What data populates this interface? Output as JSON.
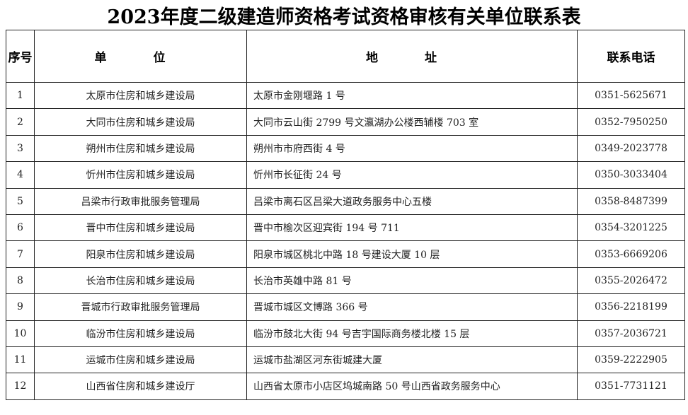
{
  "title": "2023年度二级建造师资格考试资格审核有关单位联系表",
  "headers": {
    "seq": "序号",
    "unit": "单 位",
    "address": "地 址",
    "phone": "联系电话"
  },
  "rows": [
    {
      "seq": "1",
      "unit": "太原市住房和城乡建设局",
      "address": "太原市金刚堰路 1 号",
      "phone": "0351-5625671"
    },
    {
      "seq": "2",
      "unit": "大同市住房和城乡建设局",
      "address": "大同市云山街 2799 号文瀛湖办公楼西辅楼 703 室",
      "phone": "0352-7950250"
    },
    {
      "seq": "3",
      "unit": "朔州市住房和城乡建设局",
      "address": "朔州市市府西街 4 号",
      "phone": "0349-2023778"
    },
    {
      "seq": "4",
      "unit": "忻州市住房和城乡建设局",
      "address": "忻州市长征街 24 号",
      "phone": "0350-3033404"
    },
    {
      "seq": "5",
      "unit": "吕梁市行政审批服务管理局",
      "address": "吕梁市离石区吕梁大道政务服务中心五楼",
      "phone": "0358-8487399"
    },
    {
      "seq": "6",
      "unit": "晋中市住房和城乡建设局",
      "address": "晋中市榆次区迎宾街 194 号 711",
      "phone": "0354-3201225"
    },
    {
      "seq": "7",
      "unit": "阳泉市住房和城乡建设局",
      "address": "阳泉市城区桃北中路 18 号建设大厦 10 层",
      "phone": "0353-6669206"
    },
    {
      "seq": "8",
      "unit": "长治市住房和城乡建设局",
      "address": "长治市英雄中路 81 号",
      "phone": "0355-2026472"
    },
    {
      "seq": "9",
      "unit": "晋城市行政审批服务管理局",
      "address": "晋城市城区文博路 366 号",
      "phone": "0356-2218199"
    },
    {
      "seq": "10",
      "unit": "临汾市住房和城乡建设局",
      "address": "临汾市鼓北大街 94 号吉宇国际商务楼北楼 15 层",
      "phone": "0357-2036721"
    },
    {
      "seq": "11",
      "unit": "运城市住房和城乡建设局",
      "address": "运城市盐湖区河东街城建大厦",
      "phone": "0359-2222905"
    },
    {
      "seq": "12",
      "unit": "山西省住房和城乡建设厅",
      "address": "山西省太原市小店区坞城南路 50 号山西省政务服务中心",
      "phone": "0351-7731121"
    }
  ]
}
